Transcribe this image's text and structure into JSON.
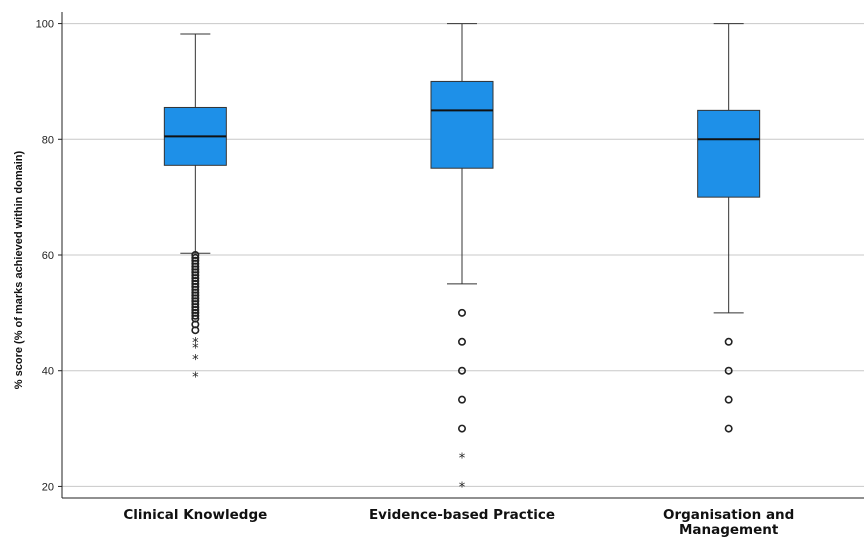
{
  "chart_data": {
    "type": "box",
    "ylabel": "% score (% of marks achieved within domain)",
    "ylim": [
      18,
      102
    ],
    "yticks": [
      "20",
      "40",
      "60",
      "80",
      "100"
    ],
    "grid": "horizontal",
    "box_color": "#1e90e8",
    "categories": [
      {
        "label": "Clinical Knowledge",
        "label_lines": [
          "Clinical Knowledge"
        ],
        "min": 60.3,
        "q1": 75.5,
        "median": 80.5,
        "q3": 85.5,
        "max": 98.2,
        "outliers": [
          60,
          59.5,
          59,
          58.5,
          58,
          57.5,
          57,
          56.5,
          56,
          55.5,
          55,
          54.5,
          54,
          53.5,
          53,
          52.5,
          52,
          51.5,
          51,
          50.5,
          50,
          49.5,
          49,
          48,
          47
        ],
        "extremes": [
          45,
          44,
          42,
          39
        ]
      },
      {
        "label": "Evidence-based Practice",
        "label_lines": [
          "Evidence-based Practice"
        ],
        "min": 55,
        "q1": 75,
        "median": 85,
        "q3": 90,
        "max": 100,
        "outliers": [
          50,
          45,
          40,
          35,
          30
        ],
        "extremes": [
          25,
          20
        ]
      },
      {
        "label": "Organisation and Management",
        "label_lines": [
          "Organisation and",
          "Management"
        ],
        "min": 50,
        "q1": 70,
        "median": 80,
        "q3": 85,
        "max": 100,
        "outliers": [
          45,
          40,
          35,
          30
        ],
        "extremes": []
      }
    ]
  }
}
